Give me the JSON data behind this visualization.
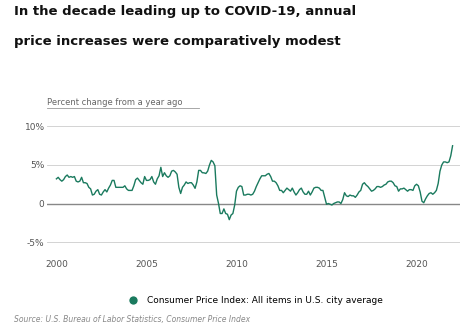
{
  "title_line1": "In the decade leading up to COVID-19, annual",
  "title_line2": "price increases were comparatively modest",
  "ylabel": "Percent change from a year ago",
  "source": "Source: U.S. Bureau of Labor Statistics, Consumer Price Index",
  "legend_label": "Consumer Price Index: All items in U.S. city average",
  "line_color": "#1a7a5e",
  "background_color": "#ffffff",
  "ylim": [
    -7,
    11
  ],
  "yticks": [
    -5,
    0,
    5,
    10
  ],
  "ytick_labels": [
    "-5%",
    "0",
    "5%",
    "10%"
  ],
  "xticks": [
    2000,
    2005,
    2010,
    2015,
    2020
  ],
  "cpi_data": [
    [
      2000.0,
      3.2
    ],
    [
      2000.1,
      3.4
    ],
    [
      2000.2,
      3.1
    ],
    [
      2000.3,
      2.9
    ],
    [
      2000.4,
      3.1
    ],
    [
      2000.5,
      3.5
    ],
    [
      2000.6,
      3.7
    ],
    [
      2000.7,
      3.4
    ],
    [
      2000.8,
      3.5
    ],
    [
      2000.9,
      3.4
    ],
    [
      2001.0,
      3.5
    ],
    [
      2001.1,
      2.9
    ],
    [
      2001.2,
      2.8
    ],
    [
      2001.3,
      2.9
    ],
    [
      2001.4,
      3.4
    ],
    [
      2001.5,
      2.7
    ],
    [
      2001.6,
      2.7
    ],
    [
      2001.7,
      2.6
    ],
    [
      2001.8,
      2.1
    ],
    [
      2001.9,
      1.9
    ],
    [
      2002.0,
      1.1
    ],
    [
      2002.1,
      1.2
    ],
    [
      2002.2,
      1.6
    ],
    [
      2002.3,
      1.8
    ],
    [
      2002.4,
      1.2
    ],
    [
      2002.5,
      1.1
    ],
    [
      2002.6,
      1.5
    ],
    [
      2002.7,
      1.8
    ],
    [
      2002.8,
      1.5
    ],
    [
      2002.9,
      2.0
    ],
    [
      2003.0,
      2.4
    ],
    [
      2003.1,
      3.0
    ],
    [
      2003.2,
      3.0
    ],
    [
      2003.3,
      2.1
    ],
    [
      2003.4,
      2.1
    ],
    [
      2003.5,
      2.1
    ],
    [
      2003.6,
      2.1
    ],
    [
      2003.7,
      2.1
    ],
    [
      2003.8,
      2.3
    ],
    [
      2003.9,
      1.9
    ],
    [
      2004.0,
      1.7
    ],
    [
      2004.1,
      1.7
    ],
    [
      2004.2,
      1.7
    ],
    [
      2004.3,
      2.3
    ],
    [
      2004.4,
      3.1
    ],
    [
      2004.5,
      3.3
    ],
    [
      2004.6,
      3.0
    ],
    [
      2004.7,
      2.7
    ],
    [
      2004.8,
      2.5
    ],
    [
      2004.9,
      3.5
    ],
    [
      2005.0,
      3.0
    ],
    [
      2005.1,
      3.0
    ],
    [
      2005.2,
      3.1
    ],
    [
      2005.3,
      3.5
    ],
    [
      2005.4,
      2.8
    ],
    [
      2005.5,
      2.5
    ],
    [
      2005.6,
      3.2
    ],
    [
      2005.7,
      3.6
    ],
    [
      2005.8,
      4.7
    ],
    [
      2005.9,
      3.5
    ],
    [
      2006.0,
      4.0
    ],
    [
      2006.1,
      3.6
    ],
    [
      2006.2,
      3.4
    ],
    [
      2006.3,
      3.6
    ],
    [
      2006.4,
      4.2
    ],
    [
      2006.5,
      4.3
    ],
    [
      2006.6,
      4.1
    ],
    [
      2006.7,
      3.8
    ],
    [
      2006.8,
      2.1
    ],
    [
      2006.9,
      1.3
    ],
    [
      2007.0,
      2.1
    ],
    [
      2007.1,
      2.4
    ],
    [
      2007.2,
      2.8
    ],
    [
      2007.3,
      2.6
    ],
    [
      2007.4,
      2.7
    ],
    [
      2007.5,
      2.7
    ],
    [
      2007.6,
      2.4
    ],
    [
      2007.7,
      1.97
    ],
    [
      2007.8,
      2.8
    ],
    [
      2007.9,
      4.3
    ],
    [
      2008.0,
      4.3
    ],
    [
      2008.1,
      4.0
    ],
    [
      2008.2,
      3.98
    ],
    [
      2008.3,
      3.9
    ],
    [
      2008.4,
      4.2
    ],
    [
      2008.5,
      5.0
    ],
    [
      2008.6,
      5.6
    ],
    [
      2008.7,
      5.4
    ],
    [
      2008.8,
      4.9
    ],
    [
      2008.9,
      1.1
    ],
    [
      2009.0,
      0.03
    ],
    [
      2009.1,
      -1.3
    ],
    [
      2009.2,
      -1.3
    ],
    [
      2009.3,
      -0.7
    ],
    [
      2009.4,
      -1.3
    ],
    [
      2009.5,
      -1.4
    ],
    [
      2009.6,
      -2.1
    ],
    [
      2009.7,
      -1.5
    ],
    [
      2009.8,
      -1.3
    ],
    [
      2009.9,
      -0.2
    ],
    [
      2010.0,
      1.6
    ],
    [
      2010.1,
      2.1
    ],
    [
      2010.2,
      2.3
    ],
    [
      2010.3,
      2.2
    ],
    [
      2010.4,
      1.1
    ],
    [
      2010.5,
      1.1
    ],
    [
      2010.6,
      1.2
    ],
    [
      2010.7,
      1.2
    ],
    [
      2010.8,
      1.1
    ],
    [
      2010.9,
      1.2
    ],
    [
      2011.0,
      1.6
    ],
    [
      2011.1,
      2.2
    ],
    [
      2011.2,
      2.7
    ],
    [
      2011.3,
      3.2
    ],
    [
      2011.4,
      3.6
    ],
    [
      2011.5,
      3.6
    ],
    [
      2011.6,
      3.6
    ],
    [
      2011.7,
      3.8
    ],
    [
      2011.8,
      3.9
    ],
    [
      2011.9,
      3.5
    ],
    [
      2012.0,
      2.9
    ],
    [
      2012.1,
      2.9
    ],
    [
      2012.2,
      2.7
    ],
    [
      2012.3,
      2.3
    ],
    [
      2012.4,
      1.7
    ],
    [
      2012.5,
      1.7
    ],
    [
      2012.6,
      1.4
    ],
    [
      2012.7,
      1.7
    ],
    [
      2012.8,
      2.0
    ],
    [
      2012.9,
      1.8
    ],
    [
      2013.0,
      1.6
    ],
    [
      2013.1,
      2.0
    ],
    [
      2013.2,
      1.5
    ],
    [
      2013.3,
      1.1
    ],
    [
      2013.4,
      1.4
    ],
    [
      2013.5,
      1.8
    ],
    [
      2013.6,
      2.0
    ],
    [
      2013.7,
      1.5
    ],
    [
      2013.8,
      1.2
    ],
    [
      2013.9,
      1.2
    ],
    [
      2014.0,
      1.6
    ],
    [
      2014.1,
      1.1
    ],
    [
      2014.2,
      1.5
    ],
    [
      2014.3,
      2.0
    ],
    [
      2014.4,
      2.1
    ],
    [
      2014.5,
      2.1
    ],
    [
      2014.6,
      2.0
    ],
    [
      2014.7,
      1.7
    ],
    [
      2014.8,
      1.7
    ],
    [
      2014.9,
      0.8
    ],
    [
      2015.0,
      -0.1
    ],
    [
      2015.1,
      0.0
    ],
    [
      2015.2,
      -0.1
    ],
    [
      2015.3,
      -0.2
    ],
    [
      2015.4,
      0.0
    ],
    [
      2015.5,
      0.1
    ],
    [
      2015.6,
      0.2
    ],
    [
      2015.7,
      0.2
    ],
    [
      2015.8,
      0.0
    ],
    [
      2015.9,
      0.5
    ],
    [
      2016.0,
      1.4
    ],
    [
      2016.1,
      1.0
    ],
    [
      2016.2,
      0.9
    ],
    [
      2016.3,
      1.1
    ],
    [
      2016.4,
      1.0
    ],
    [
      2016.5,
      1.0
    ],
    [
      2016.6,
      0.8
    ],
    [
      2016.7,
      1.1
    ],
    [
      2016.8,
      1.5
    ],
    [
      2016.9,
      1.7
    ],
    [
      2017.0,
      2.5
    ],
    [
      2017.1,
      2.7
    ],
    [
      2017.2,
      2.4
    ],
    [
      2017.3,
      2.2
    ],
    [
      2017.4,
      1.9
    ],
    [
      2017.5,
      1.6
    ],
    [
      2017.6,
      1.7
    ],
    [
      2017.7,
      1.9
    ],
    [
      2017.8,
      2.2
    ],
    [
      2017.9,
      2.2
    ],
    [
      2018.0,
      2.1
    ],
    [
      2018.1,
      2.2
    ],
    [
      2018.2,
      2.4
    ],
    [
      2018.3,
      2.5
    ],
    [
      2018.4,
      2.8
    ],
    [
      2018.5,
      2.9
    ],
    [
      2018.6,
      2.9
    ],
    [
      2018.7,
      2.7
    ],
    [
      2018.8,
      2.3
    ],
    [
      2018.9,
      2.2
    ],
    [
      2019.0,
      1.6
    ],
    [
      2019.1,
      1.9
    ],
    [
      2019.2,
      1.9
    ],
    [
      2019.3,
      2.0
    ],
    [
      2019.4,
      1.8
    ],
    [
      2019.5,
      1.6
    ],
    [
      2019.6,
      1.8
    ],
    [
      2019.7,
      1.8
    ],
    [
      2019.8,
      1.7
    ],
    [
      2019.9,
      2.3
    ],
    [
      2020.0,
      2.5
    ],
    [
      2020.1,
      2.3
    ],
    [
      2020.2,
      1.5
    ],
    [
      2020.3,
      0.3
    ],
    [
      2020.4,
      0.1
    ],
    [
      2020.5,
      0.6
    ],
    [
      2020.6,
      1.0
    ],
    [
      2020.7,
      1.3
    ],
    [
      2020.8,
      1.4
    ],
    [
      2020.9,
      1.2
    ],
    [
      2021.0,
      1.4
    ],
    [
      2021.1,
      1.7
    ],
    [
      2021.2,
      2.6
    ],
    [
      2021.3,
      4.2
    ],
    [
      2021.4,
      5.0
    ],
    [
      2021.5,
      5.4
    ],
    [
      2021.6,
      5.4
    ],
    [
      2021.7,
      5.3
    ],
    [
      2021.8,
      5.4
    ],
    [
      2021.9,
      6.2
    ],
    [
      2022.0,
      7.5
    ]
  ]
}
